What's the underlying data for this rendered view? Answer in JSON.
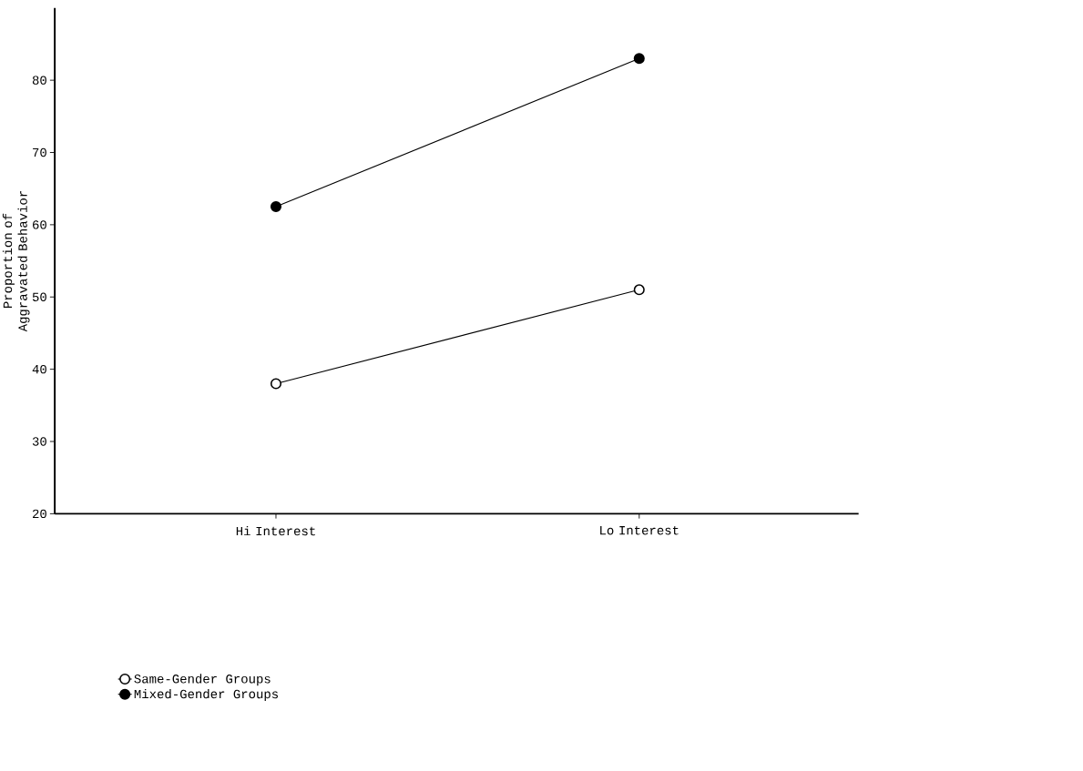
{
  "chart_data": {
    "type": "line",
    "ylabel": "Proportion of Aggravated Behavior",
    "categories": [
      "Hi Interest",
      "Lo Interest"
    ],
    "series": [
      {
        "name": "Same-Gender Groups",
        "color": "#000000",
        "values": [
          38,
          51
        ]
      },
      {
        "name": "Mixed-Gender Groups",
        "color": "#000000",
        "values": [
          62.5,
          83
        ]
      }
    ],
    "ylim": [
      20,
      90
    ],
    "yticks": [
      20,
      30,
      40,
      50,
      60,
      70,
      80
    ],
    "marker": "circle",
    "line_style": "solid",
    "legend": "bottom",
    "grid": false
  }
}
